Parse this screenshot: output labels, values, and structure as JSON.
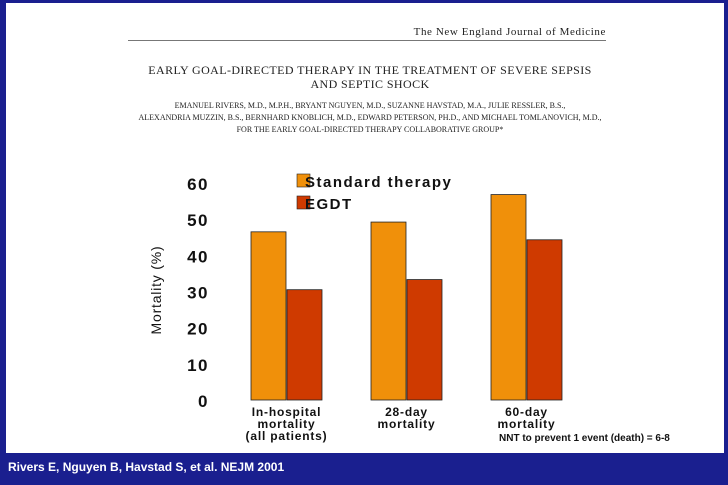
{
  "journal_name": "The New England Journal of Medicine",
  "paper": {
    "title_line1": "EARLY GOAL-DIRECTED THERAPY IN THE TREATMENT OF SEVERE SEPSIS",
    "title_line2": "AND SEPTIC SHOCK",
    "authors_line1": "EMANUEL RIVERS, M.D., M.P.H., BRYANT NGUYEN, M.D., SUZANNE HAVSTAD, M.A., JULIE RESSLER, B.S.,",
    "authors_line2": "ALEXANDRIA MUZZIN, B.S., BERNHARD KNOBLICH, M.D., EDWARD PETERSON, PH.D., AND MICHAEL TOMLANOVICH, M.D.,",
    "authors_line3": "FOR THE EARLY GOAL-DIRECTED THERAPY COLLABORATIVE GROUP*"
  },
  "nnt_note": "NNT to prevent 1 event (death) = 6-8",
  "citation": "Rivers E, Nguyen B, Havstad S, et al. NEJM 2001",
  "colors": {
    "standard": "#f0900a",
    "egdt": "#cf3a00",
    "frame": "#1a1f8f"
  },
  "chart_data": {
    "type": "bar",
    "title": "",
    "ylabel": "Mortality (%)",
    "xlabel": "",
    "ylim": [
      0,
      60
    ],
    "yticks": [
      "0",
      "10",
      "20",
      "30",
      "40",
      "50",
      "60"
    ],
    "categories": [
      [
        "In-hospital",
        "mortality",
        "(all patients)"
      ],
      [
        "28-day",
        "mortality"
      ],
      [
        "60-day",
        "mortality"
      ]
    ],
    "series": [
      {
        "name": "Standard therapy",
        "values": [
          46.5,
          49.2,
          56.8
        ]
      },
      {
        "name": "EGDT",
        "values": [
          30.5,
          33.3,
          44.3
        ]
      }
    ],
    "legend_position": "top-right"
  }
}
